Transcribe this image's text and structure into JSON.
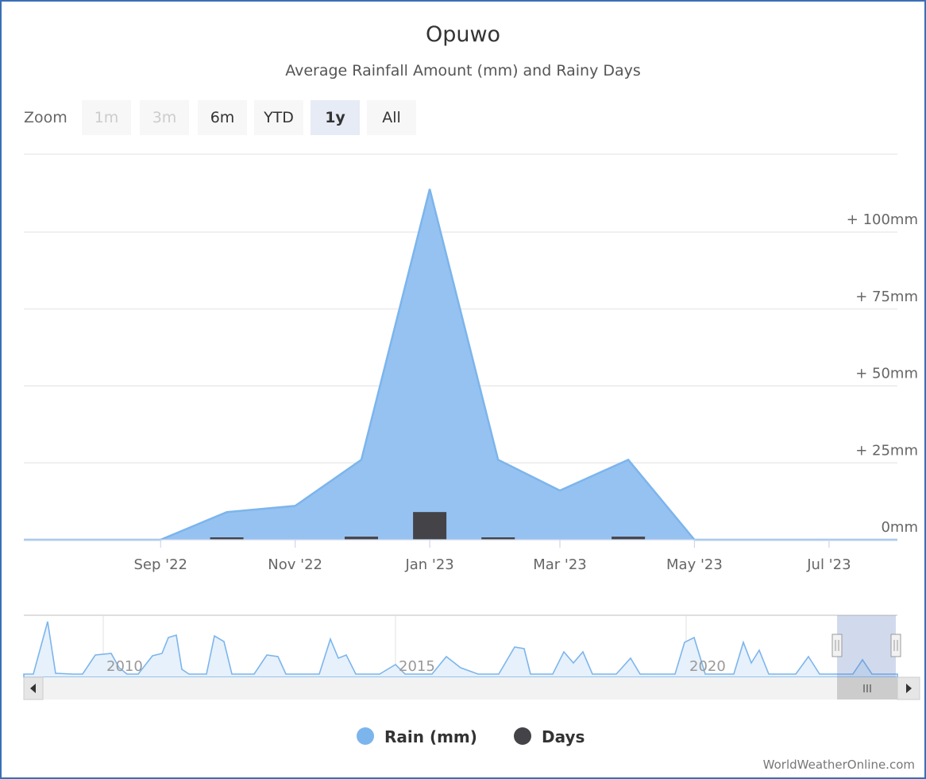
{
  "title": "Opuwo",
  "subtitle": "Average Rainfall Amount (mm) and Rainy Days",
  "zoom": {
    "label": "Zoom",
    "buttons": [
      {
        "label": "1m",
        "state": "disabled"
      },
      {
        "label": "3m",
        "state": "disabled"
      },
      {
        "label": "6m",
        "state": "normal"
      },
      {
        "label": "YTD",
        "state": "normal"
      },
      {
        "label": "1y",
        "state": "active"
      },
      {
        "label": "All",
        "state": "normal"
      }
    ]
  },
  "chart_data": {
    "type": "area",
    "x_axis_type": "date",
    "x": [
      "2022-07-01",
      "2022-08-01",
      "2022-09-01",
      "2022-10-01",
      "2022-11-01",
      "2022-12-01",
      "2023-01-01",
      "2023-02-01",
      "2023-03-01",
      "2023-04-01",
      "2023-05-01",
      "2023-06-01",
      "2023-07-01",
      "2023-08-01"
    ],
    "x_ticks": [
      "Sep '22",
      "Nov '22",
      "Jan '23",
      "Mar '23",
      "May '23",
      "Jul '23"
    ],
    "y_ticks": [
      "0mm",
      "+ 25mm",
      "+ 50mm",
      "+ 75mm",
      "+ 100mm"
    ],
    "ylim": [
      0,
      125
    ],
    "series": [
      {
        "name": "Rain (mm)",
        "type": "area",
        "color": "#90bff0",
        "line_color": "#7cb5ec",
        "values": [
          0,
          0,
          0,
          9,
          11,
          26,
          114,
          26,
          16,
          26,
          0,
          0,
          0,
          0
        ]
      },
      {
        "name": "Days",
        "type": "column",
        "color": "#434348",
        "values": [
          0,
          0,
          0,
          0.3,
          0,
          1,
          9,
          0.2,
          0,
          1,
          0,
          0,
          0,
          0
        ]
      }
    ],
    "legend": {
      "position": "bottom-center",
      "items": [
        "Rain (mm)",
        "Days"
      ]
    },
    "grid": true
  },
  "navigator": {
    "year_labels": [
      "2010",
      "2015",
      "2020"
    ],
    "scroll_left_icon": "triangle-left-icon",
    "scroll_right_icon": "triangle-right-icon",
    "scroll_thumb_icon": "grip-icon"
  },
  "credit": "WorldWeatherOnline.com",
  "colors": {
    "rain": "#7cb5ec",
    "days": "#434348",
    "frame": "#3a6fb6"
  }
}
